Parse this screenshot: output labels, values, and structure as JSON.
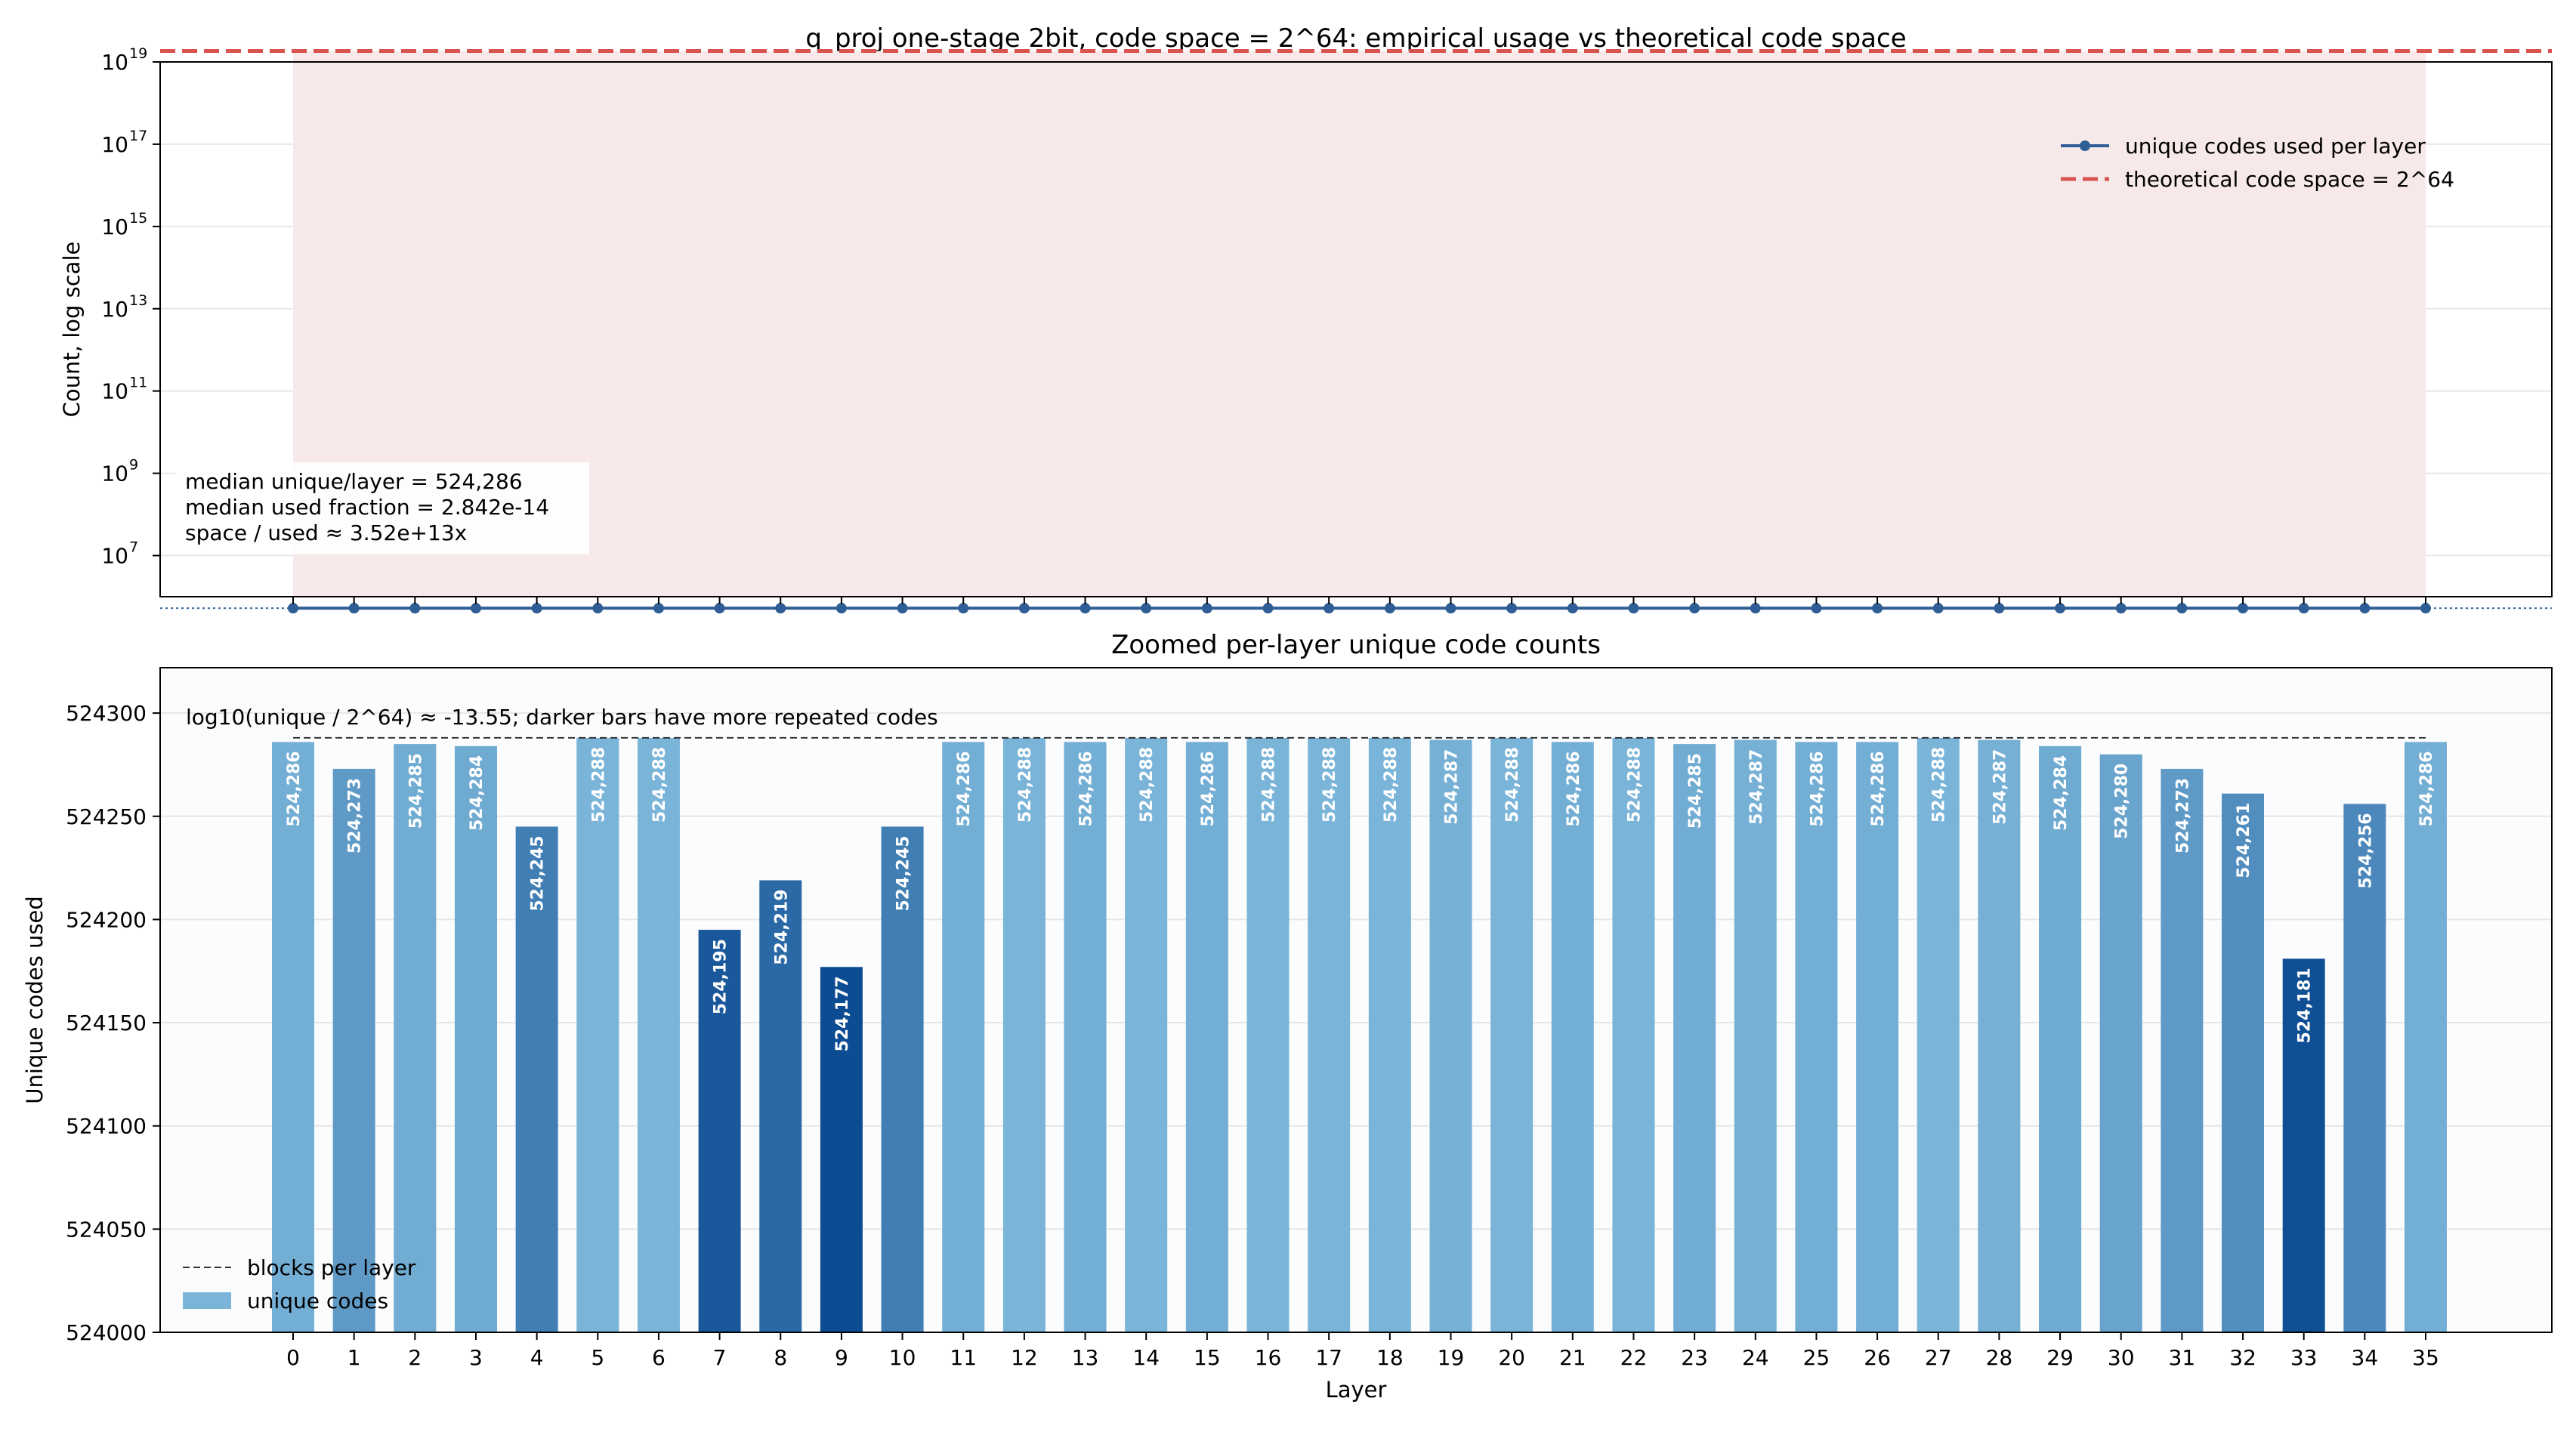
{
  "chart_data": [
    {
      "type": "line",
      "title": "q_proj one-stage 2bit, code space = 2^64: empirical usage vs theoretical code space",
      "xlabel": "",
      "ylabel": "Count, log scale",
      "yscale": "log",
      "ylim": [
        1000000,
        10000000000000000000
      ],
      "ytick_base": "10",
      "ytick_exponents": [
        "7",
        "9",
        "11",
        "13",
        "15",
        "17",
        "19"
      ],
      "x": [
        0,
        1,
        2,
        3,
        4,
        5,
        6,
        7,
        8,
        9,
        10,
        11,
        12,
        13,
        14,
        15,
        16,
        17,
        18,
        19,
        20,
        21,
        22,
        23,
        24,
        25,
        26,
        27,
        28,
        29,
        30,
        31,
        32,
        33,
        34,
        35
      ],
      "series": [
        {
          "name": "unique codes used per layer",
          "color": "#2e5e95",
          "values": [
            524286,
            524273,
            524285,
            524284,
            524245,
            524288,
            524288,
            524195,
            524219,
            524177,
            524245,
            524286,
            524288,
            524286,
            524288,
            524286,
            524288,
            524288,
            524288,
            524287,
            524288,
            524286,
            524288,
            524285,
            524287,
            524286,
            524286,
            524288,
            524287,
            524284,
            524280,
            524273,
            524261,
            524181,
            524256,
            524286
          ]
        },
        {
          "name": "theoretical code space = 2^64",
          "color": "#d9534f",
          "style": "dashed",
          "value": 18446744073709551616
        }
      ],
      "blocks_line_value": 524288,
      "legend": "upper-right",
      "annotation_lines": [
        "median unique/layer = 524,286",
        "median used fraction = 2.842e-14",
        "space / used ≈ 3.52e+13x"
      ],
      "shaded_band_color": "#f7e9e9",
      "grid": true
    },
    {
      "type": "bar",
      "title": "Zoomed per-layer unique code counts",
      "xlabel": "Layer",
      "ylabel": "Unique codes used",
      "ylim": [
        524000,
        524322
      ],
      "yticks": [
        524000,
        524050,
        524100,
        524150,
        524200,
        524250,
        524300
      ],
      "categories": [
        "0",
        "1",
        "2",
        "3",
        "4",
        "5",
        "6",
        "7",
        "8",
        "9",
        "10",
        "11",
        "12",
        "13",
        "14",
        "15",
        "16",
        "17",
        "18",
        "19",
        "20",
        "21",
        "22",
        "23",
        "24",
        "25",
        "26",
        "27",
        "28",
        "29",
        "30",
        "31",
        "32",
        "33",
        "34",
        "35"
      ],
      "values": [
        524286,
        524273,
        524285,
        524284,
        524245,
        524288,
        524288,
        524195,
        524219,
        524177,
        524245,
        524286,
        524288,
        524286,
        524288,
        524286,
        524288,
        524288,
        524288,
        524287,
        524288,
        524286,
        524288,
        524285,
        524287,
        524286,
        524286,
        524288,
        524287,
        524284,
        524280,
        524273,
        524261,
        524181,
        524256,
        524286
      ],
      "data_labels": [
        "524,286",
        "524,273",
        "524,285",
        "524,284",
        "524,245",
        "524,288",
        "524,288",
        "524,195",
        "524,219",
        "524,177",
        "524,245",
        "524,286",
        "524,288",
        "524,286",
        "524,288",
        "524,286",
        "524,288",
        "524,288",
        "524,288",
        "524,287",
        "524,288",
        "524,286",
        "524,288",
        "524,285",
        "524,287",
        "524,286",
        "524,286",
        "524,288",
        "524,287",
        "524,284",
        "524,280",
        "524,273",
        "524,261",
        "524,181",
        "524,256",
        "524,286"
      ],
      "blocks_per_layer": 524288,
      "annotation": "log10(unique / 2^64) ≈ -13.55; darker bars have more repeated codes",
      "legend_entries": [
        "blocks per layer",
        "unique codes"
      ],
      "legend": "lower-left",
      "colors": {
        "light": "#7ab4d8",
        "dark": "#0c4c92"
      },
      "grid": true
    }
  ]
}
